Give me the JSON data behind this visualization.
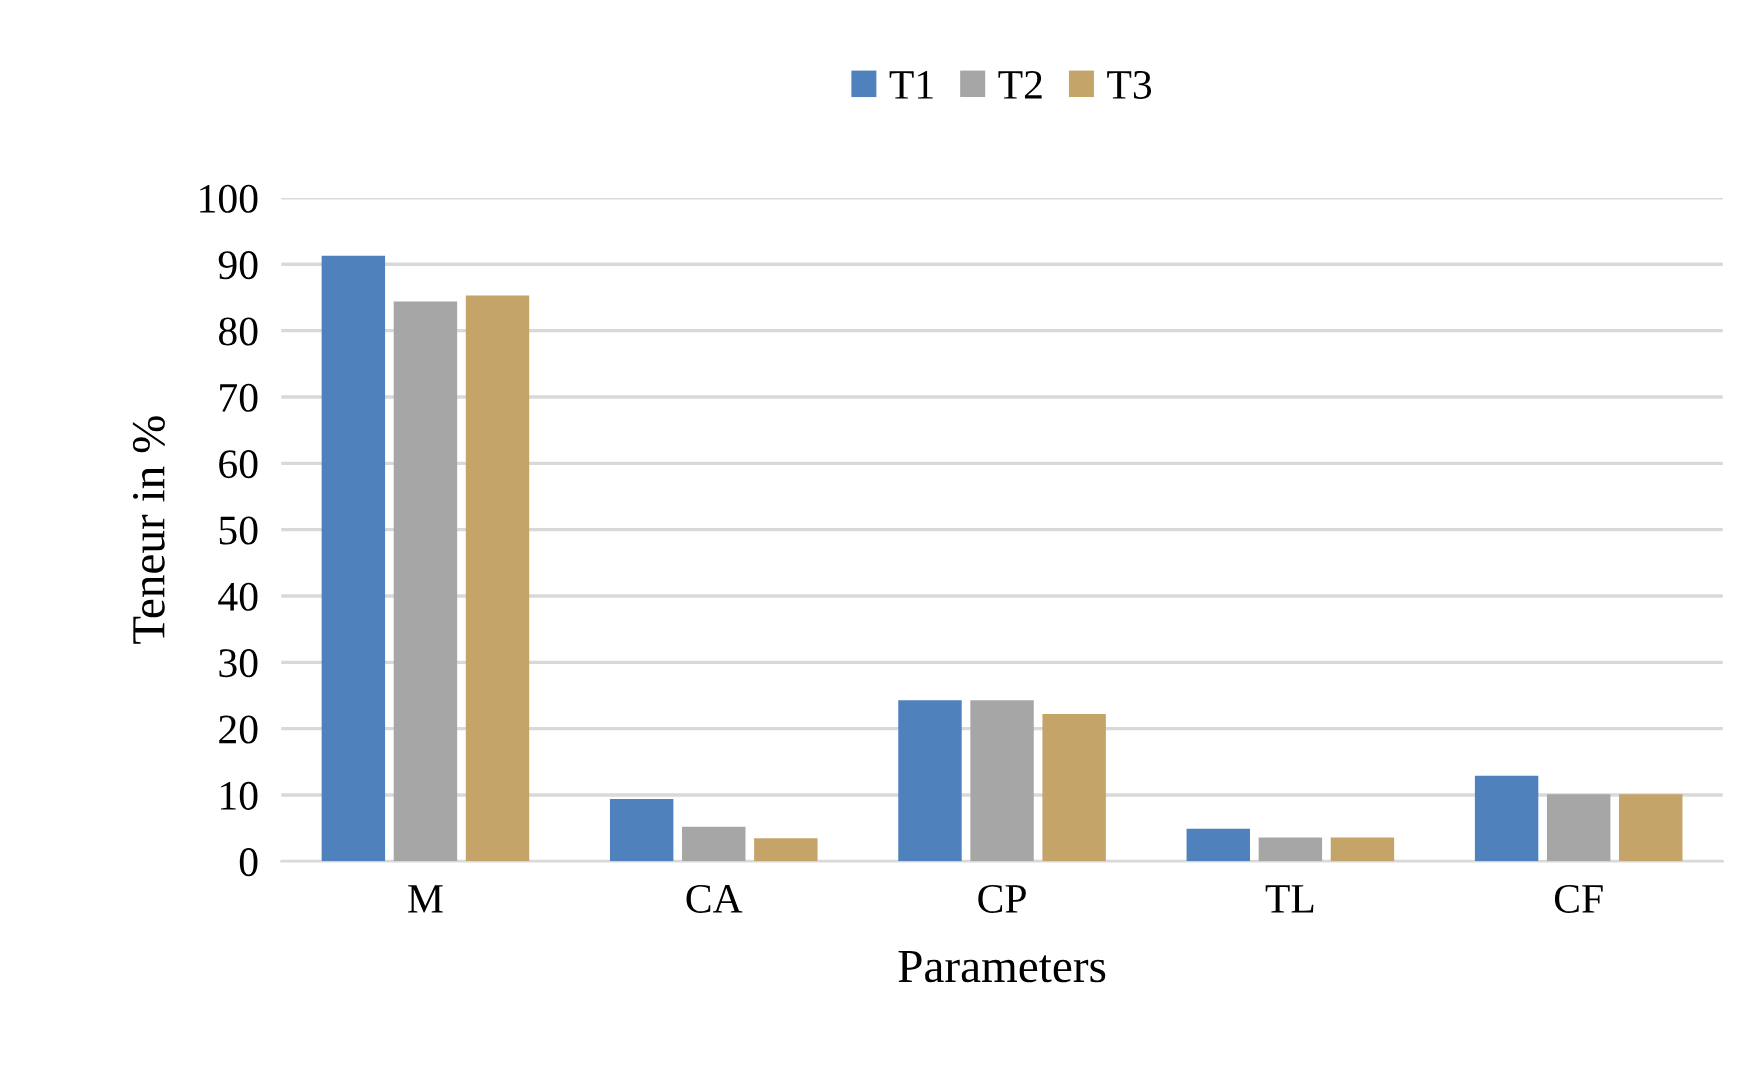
{
  "chart_data": {
    "type": "bar",
    "xlabel": "Parameters",
    "ylabel": "Teneur in %",
    "categories": [
      "M",
      "CA",
      "CP",
      "TL",
      "CF"
    ],
    "series": [
      {
        "name": "T1",
        "color": "#4f81bd",
        "values": [
          91.3,
          9.4,
          24.3,
          4.9,
          12.9
        ]
      },
      {
        "name": "T2",
        "color": "#a6a6a6",
        "values": [
          84.4,
          5.2,
          24.3,
          3.6,
          10.1
        ]
      },
      {
        "name": "T3",
        "color": "#c4a468",
        "values": [
          85.3,
          3.5,
          22.2,
          3.6,
          10.1
        ]
      }
    ],
    "ylim": [
      0,
      100
    ],
    "yticks": [
      0,
      10,
      20,
      30,
      40,
      50,
      60,
      70,
      80,
      90,
      100
    ],
    "grid": "y",
    "legend": "top"
  }
}
